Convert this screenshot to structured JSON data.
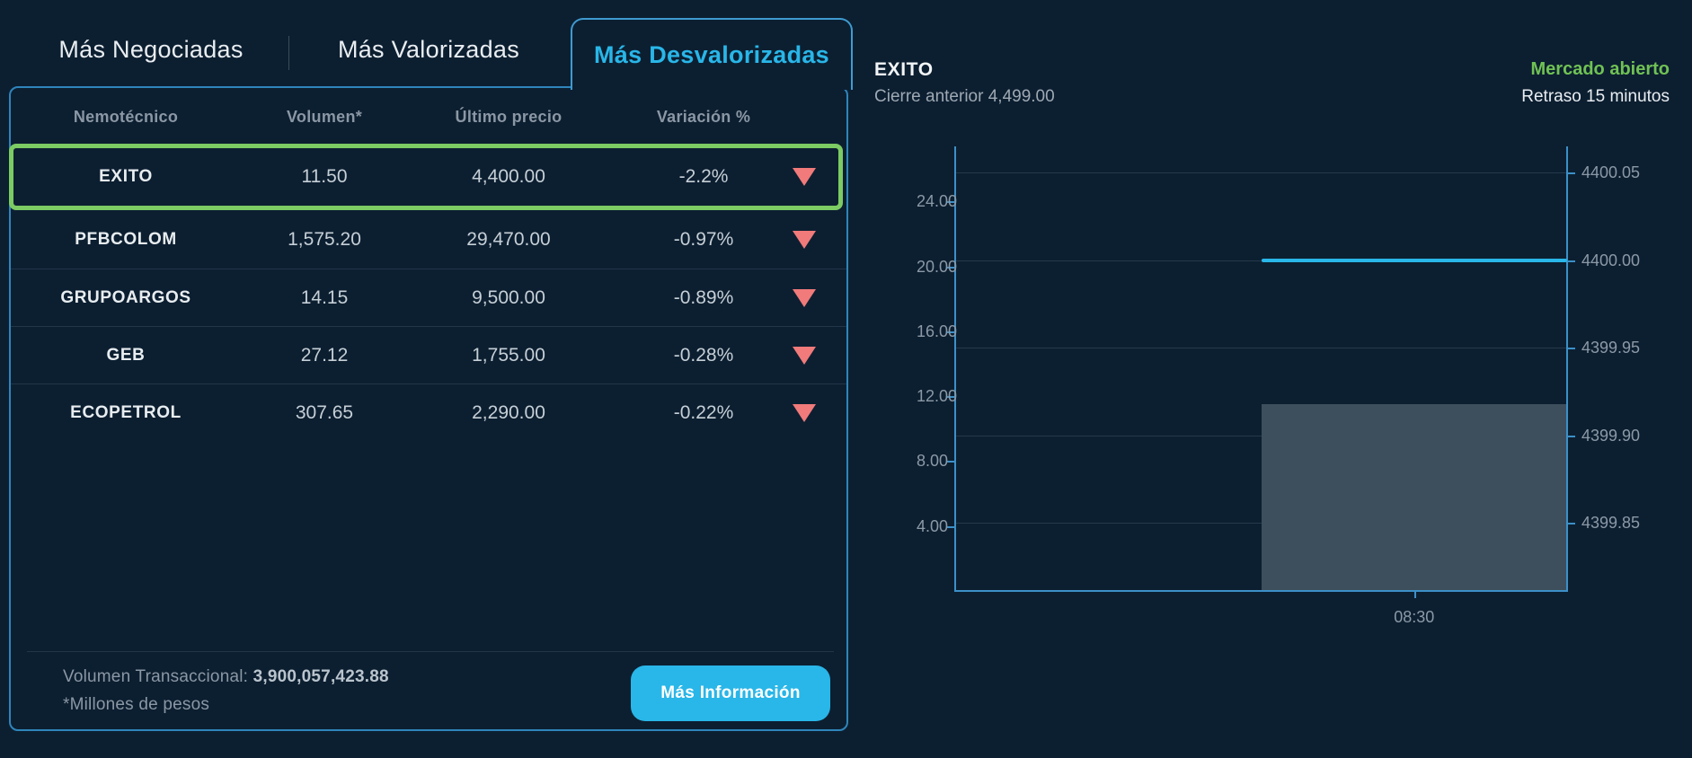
{
  "tabs": {
    "items": [
      {
        "label": "Más Negociadas",
        "active": false
      },
      {
        "label": "Más Valorizadas",
        "active": false
      },
      {
        "label": "Más Desvalorizadas",
        "active": true
      }
    ]
  },
  "table": {
    "headers": [
      "Nemotécnico",
      "Volumen*",
      "Último precio",
      "Variación %"
    ],
    "rows": [
      {
        "symbol": "EXITO",
        "volume": "11.50",
        "price": "4,400.00",
        "change": "-2.2%",
        "direction": "down",
        "selected": true
      },
      {
        "symbol": "PFBCOLOM",
        "volume": "1,575.20",
        "price": "29,470.00",
        "change": "-0.97%",
        "direction": "down",
        "selected": false
      },
      {
        "symbol": "GRUPOARGOS",
        "volume": "14.15",
        "price": "9,500.00",
        "change": "-0.89%",
        "direction": "down",
        "selected": false
      },
      {
        "symbol": "GEB",
        "volume": "27.12",
        "price": "1,755.00",
        "change": "-0.28%",
        "direction": "down",
        "selected": false
      },
      {
        "symbol": "ECOPETROL",
        "volume": "307.65",
        "price": "2,290.00",
        "change": "-0.22%",
        "direction": "down",
        "selected": false
      }
    ],
    "footer": {
      "volume_label": "Volumen Transaccional:",
      "volume_value": "3,900,057,423.88",
      "note": "*Millones de pesos",
      "button_label": "Más Información"
    }
  },
  "quote": {
    "symbol": "EXITO",
    "prev_close_label": "Cierre anterior",
    "prev_close_value": "4,499.00",
    "market_status": "Mercado abierto",
    "delay_note": "Retraso 15 minutos"
  },
  "chart_data": {
    "type": "mixed",
    "x_ticks": [
      "08:30"
    ],
    "series": [
      {
        "name": "precio",
        "type": "line",
        "axis": "right",
        "value": 4400.0,
        "color": "#29b6e8"
      },
      {
        "name": "volumen",
        "type": "bar",
        "axis": "left",
        "value": 11.5,
        "color": "#3d4f5c"
      }
    ],
    "left_axis": {
      "ticks": [
        "4.00",
        "8.00",
        "12.00",
        "16.00",
        "20.00",
        "24.00"
      ],
      "tick_values": [
        4,
        8,
        12,
        16,
        20,
        24
      ],
      "min": 0,
      "max": 27.4
    },
    "right_axis": {
      "ticks": [
        "4399.85",
        "4399.90",
        "4399.95",
        "4400.00",
        "4400.05"
      ],
      "tick_values": [
        4399.85,
        4399.9,
        4399.95,
        4400.0,
        4400.05
      ],
      "min": 4399.811,
      "max": 4400.065
    },
    "grid": "horizontal-at-right-ticks",
    "legend": "none"
  },
  "colors": {
    "background": "#0c1f31",
    "accent_cyan": "#29b6e8",
    "panel_border": "#2f85ba",
    "selected_row_border": "#7ccb63",
    "negative_red": "#f17a7a",
    "market_open_green": "#70c254",
    "axis_blue": "#3c90c8",
    "grid_grey": "#24394b",
    "tick_text_grey": "#8c99a6"
  }
}
